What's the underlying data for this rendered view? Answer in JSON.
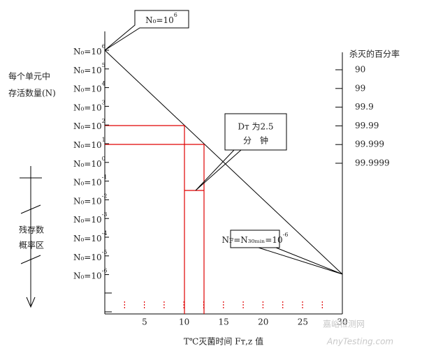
{
  "left_title": [
    "每个单元中",
    "存活数量(N)"
  ],
  "y_labels": [
    {
      "base": "N₀=10",
      "exp": "6"
    },
    {
      "base": "N₀=10",
      "exp": "5"
    },
    {
      "base": "N₀=10",
      "exp": "4"
    },
    {
      "base": "N₀=10",
      "exp": "3"
    },
    {
      "base": "N₀=10",
      "exp": "2"
    },
    {
      "base": "N₀=10",
      "exp": "1"
    },
    {
      "base": "N₀=10",
      "exp": "0"
    },
    {
      "base": "N₀=10",
      "exp": "-1"
    },
    {
      "base": "N₀=10",
      "exp": "-2"
    },
    {
      "base": "N₀=10",
      "exp": "-3"
    },
    {
      "base": "N₀=10",
      "exp": "-4"
    },
    {
      "base": "N₀=10",
      "exp": "-5"
    },
    {
      "base": "N₀=10",
      "exp": "-6"
    }
  ],
  "right_title": "杀灭的百分率",
  "right_labels": [
    "90",
    "99",
    "99.9",
    "99.99",
    "99.999",
    "99.9999"
  ],
  "x_ticks": [
    "5",
    "10",
    "15",
    "20",
    "25",
    "30"
  ],
  "x_title": "T℃灭菌时间 Fт,z 值",
  "side_label": [
    "残存数",
    "概率区"
  ],
  "callout_top": {
    "base": "N₀=10",
    "exp": "6"
  },
  "callout_d": [
    "Dт 为2.5",
    "分　钟"
  ],
  "callout_nf": {
    "base": "Nꜰ=N₃₀ₘᵢₙ=10",
    "exp": "-6"
  },
  "watermark": [
    "嘉峪检测网",
    "AnyTesting.com"
  ]
}
